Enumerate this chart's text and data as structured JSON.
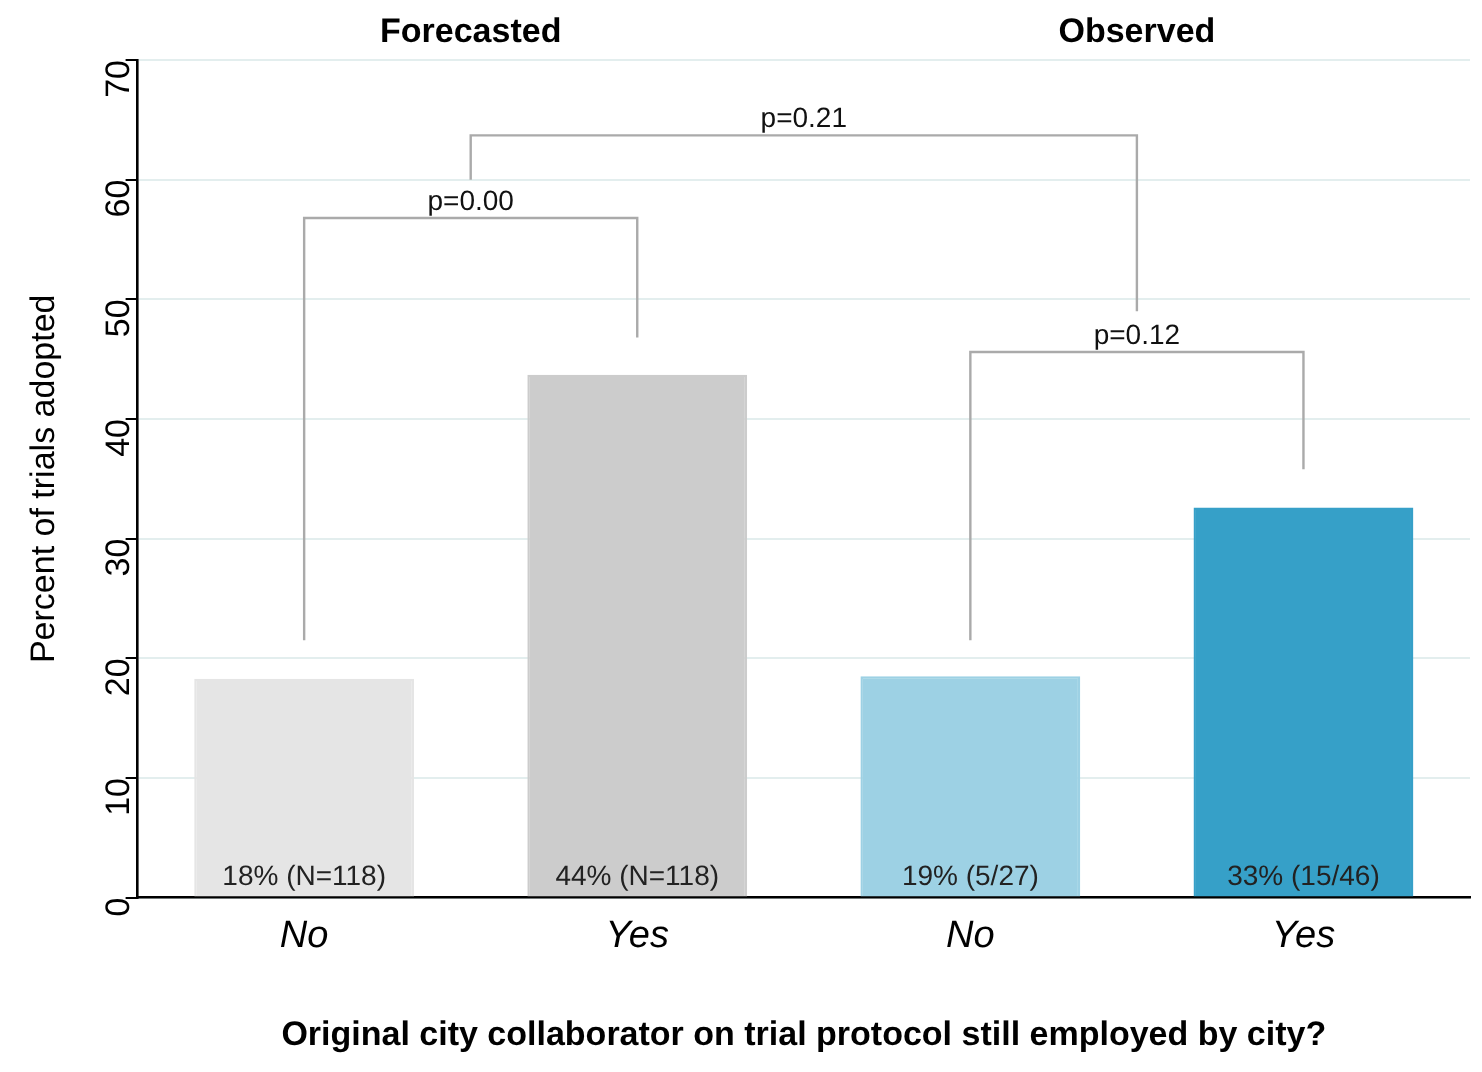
{
  "chart_data": {
    "type": "bar",
    "xlabel": "Original city collaborator on trial protocol still employed by city?",
    "ylabel": "Percent of trials adopted",
    "categories": [
      "No",
      "Yes",
      "No",
      "Yes"
    ],
    "values": [
      18.3,
      43.7,
      18.5,
      32.6
    ],
    "colors": [
      "#e5e5e5",
      "#cccccc",
      "#9dd1e4",
      "#36a0c8"
    ],
    "value_labels": [
      "18% (N=118)",
      "44% (N=118)",
      "19% (5/27)",
      "33% (15/46)"
    ],
    "ylim": [
      0,
      70
    ],
    "yticks": [
      0,
      10,
      20,
      30,
      40,
      50,
      60,
      70
    ],
    "grid": "y",
    "annotations": [
      "Forecasted",
      "Observed",
      "p=0.00",
      "p=0.21",
      "p=0.12"
    ]
  }
}
